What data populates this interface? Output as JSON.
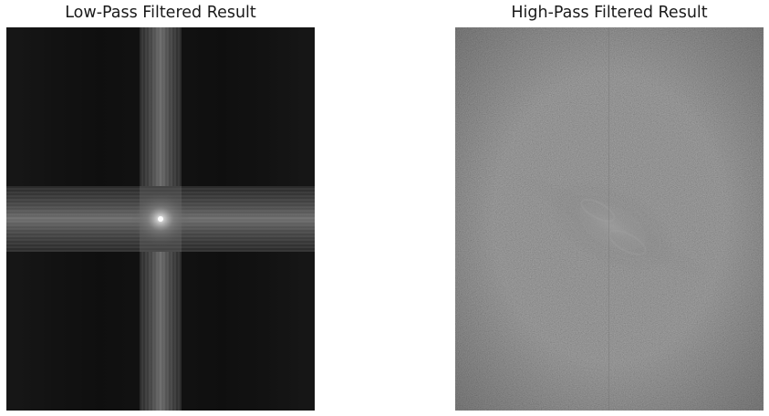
{
  "figure": {
    "panels": [
      {
        "title": "Low-Pass Filtered Result",
        "image": "low-pass-spectrum-image"
      },
      {
        "title": "High-Pass Filtered Result",
        "image": "high-pass-spectrum-image"
      }
    ]
  },
  "colors": {
    "background": "#ffffff",
    "low_pass_base": "#141414",
    "high_pass_base": "#555555",
    "title_text": "#1a1a1a"
  }
}
